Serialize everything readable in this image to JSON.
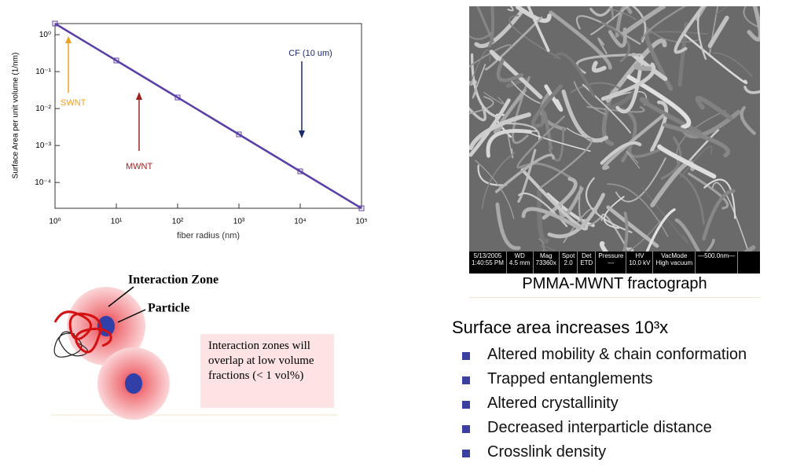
{
  "chart_data": {
    "type": "line",
    "xlabel": "fiber radius (nm)",
    "ylabel": "Surface Area per unit volume (1/nm)",
    "x": [
      1,
      10,
      100,
      1000,
      10000,
      100000
    ],
    "values": [
      2,
      0.2,
      0.02,
      0.002,
      0.0002,
      2e-05
    ],
    "color": "#5b3fa8",
    "xscale": "log",
    "yscale": "log",
    "xlim": [
      1,
      100000
    ],
    "ylim": [
      2e-05,
      2
    ],
    "xticks": [
      {
        "value": 1,
        "label": "10⁰"
      },
      {
        "value": 10,
        "label": "10¹"
      },
      {
        "value": 100,
        "label": "10²"
      },
      {
        "value": 1000,
        "label": "10³"
      },
      {
        "value": 10000,
        "label": "10⁴"
      },
      {
        "value": 100000,
        "label": "10⁵"
      }
    ],
    "yticks": [
      {
        "value": 1,
        "label": "10⁰"
      },
      {
        "value": 0.1,
        "label": "10⁻¹"
      },
      {
        "value": 0.01,
        "label": "10⁻²"
      },
      {
        "value": 0.001,
        "label": "10⁻³"
      },
      {
        "value": 0.0001,
        "label": "10⁻⁴"
      }
    ],
    "annotations": [
      "SWNT",
      "MWNT",
      "CF (10 um)"
    ]
  },
  "diagram": {
    "zone_label": "Interaction Zone",
    "particle_label": "Particle",
    "note": "Interaction zones will overlap at low volume fractions (< 1 vol%)"
  },
  "image": {
    "info": [
      [
        "5/13/2005",
        "1:40:55 PM"
      ],
      [
        "WD",
        "4.5 mm"
      ],
      [
        "Mag",
        "73360x"
      ],
      [
        "Spot",
        "2.0"
      ],
      [
        "Det",
        "ETD"
      ],
      [
        "Pressure",
        "---"
      ],
      [
        "HV",
        "10.0 kV"
      ],
      [
        "VacMode",
        "High vacuum"
      ],
      [
        "—500.0nm—"
      ]
    ],
    "caption": "PMMA-MWNT fractograph"
  },
  "summary": {
    "heading": "Surface area increases 10³x",
    "bullets": [
      "Altered mobility & chain conformation",
      "Trapped entanglements",
      "Altered crystallinity",
      "Decreased interparticle distance",
      "Crosslink density"
    ]
  }
}
